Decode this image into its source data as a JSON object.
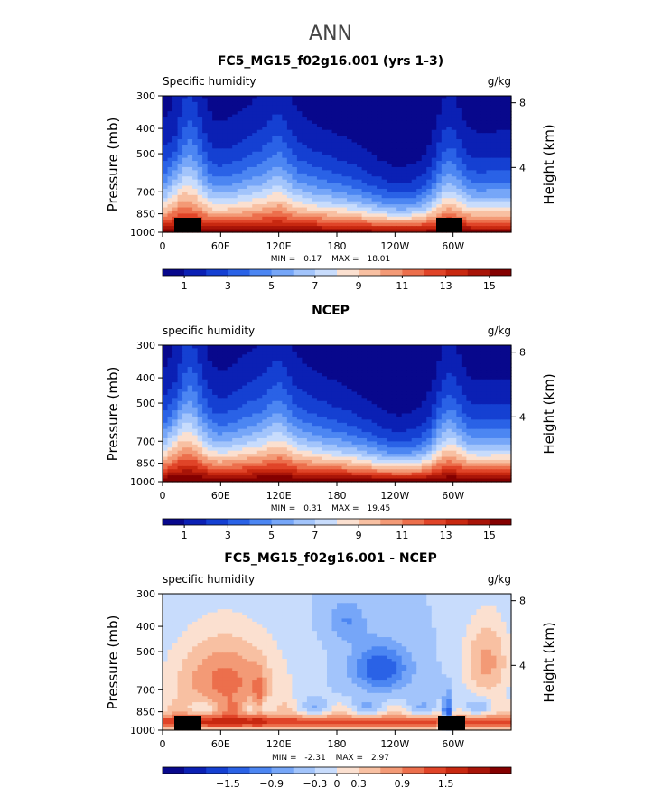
{
  "figure_title": "ANN",
  "chart_data": [
    {
      "type": "heatmap",
      "title": "FC5_MG15_f02g16.001 (yrs 1-3)",
      "variable": "Specific humidity",
      "units": "g/kg",
      "ylabel": "Pressure (mb)",
      "ylabel_right": "Height (km)",
      "pressure_ticks": [
        "300",
        "400",
        "500",
        "700",
        "850",
        "1000"
      ],
      "height_ticks": [
        "8",
        "4"
      ],
      "lon_ticks": [
        "0",
        "60E",
        "120E",
        "180",
        "120W",
        "60W"
      ],
      "min_label": "MIN =",
      "min_value": "0.17",
      "max_label": "MAX =",
      "max_value": "18.01",
      "colorbar_labels": [
        "1",
        "3",
        "5",
        "7",
        "9",
        "11",
        "13",
        "15"
      ],
      "levels": [
        0,
        1,
        2,
        3,
        4,
        5,
        6,
        7,
        8,
        9,
        10,
        11,
        12,
        13,
        14,
        15,
        16
      ],
      "ylim": [
        1000,
        300
      ],
      "xlim": [
        0,
        360
      ]
    },
    {
      "type": "heatmap",
      "title": "NCEP",
      "variable": "specific humidity",
      "units": "g/kg",
      "ylabel": "Pressure (mb)",
      "ylabel_right": "Height (km)",
      "pressure_ticks": [
        "300",
        "400",
        "500",
        "700",
        "850",
        "1000"
      ],
      "height_ticks": [
        "8",
        "4"
      ],
      "lon_ticks": [
        "0",
        "60E",
        "120E",
        "180",
        "120W",
        "60W"
      ],
      "min_label": "MIN =",
      "min_value": "0.31",
      "max_label": "MAX =",
      "max_value": "19.45",
      "colorbar_labels": [
        "1",
        "3",
        "5",
        "7",
        "9",
        "11",
        "13",
        "15"
      ],
      "levels": [
        0,
        1,
        2,
        3,
        4,
        5,
        6,
        7,
        8,
        9,
        10,
        11,
        12,
        13,
        14,
        15,
        16
      ],
      "ylim": [
        1000,
        300
      ],
      "xlim": [
        0,
        360
      ]
    },
    {
      "type": "heatmap",
      "title": "FC5_MG15_f02g16.001 - NCEP",
      "variable": "specific humidity",
      "units": "g/kg",
      "ylabel": "Pressure (mb)",
      "ylabel_right": "Height (km)",
      "pressure_ticks": [
        "300",
        "400",
        "500",
        "700",
        "850",
        "1000"
      ],
      "height_ticks": [
        "8",
        "4"
      ],
      "lon_ticks": [
        "0",
        "60E",
        "120E",
        "180",
        "120W",
        "60W"
      ],
      "min_label": "MIN =",
      "min_value": "-2.31",
      "max_label": "MAX =",
      "max_value": "2.97",
      "colorbar_labels": [
        "−1.5",
        "−0.9",
        "−0.3",
        "0",
        "0.3",
        "0.9",
        "1.5"
      ],
      "levels": [
        -2.1,
        -1.8,
        -1.5,
        -1.2,
        -0.9,
        -0.6,
        -0.3,
        0,
        0.3,
        0.6,
        0.9,
        1.2,
        1.5,
        1.8,
        2.1
      ],
      "ylim": [
        1000,
        300
      ],
      "xlim": [
        0,
        360
      ]
    }
  ],
  "palette": [
    "#08088c",
    "#0b20b4",
    "#1540d2",
    "#2a62e6",
    "#4c86f2",
    "#76a6f8",
    "#a2c4fb",
    "#c8dcfc",
    "#fbe0d0",
    "#f8c0a2",
    "#f39a76",
    "#ec6f4c",
    "#e04428",
    "#c82810",
    "#a81408",
    "#840000"
  ]
}
